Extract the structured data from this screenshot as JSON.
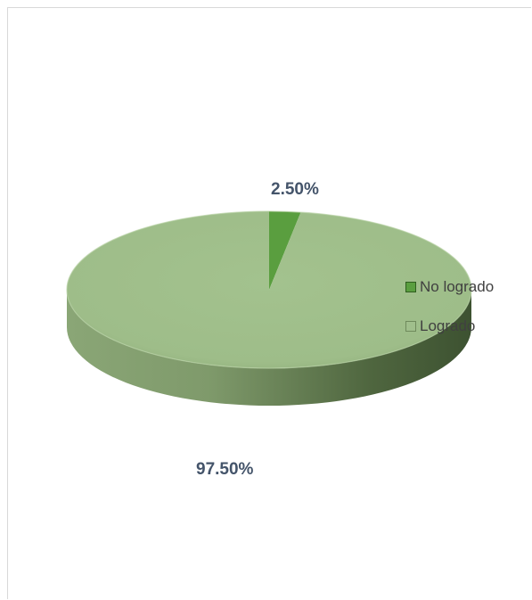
{
  "chart_data": {
    "type": "pie",
    "categories": [
      "No logrado",
      "Logrado"
    ],
    "values": [
      2.5,
      97.5
    ],
    "data_labels": [
      "2.50%",
      "97.50%"
    ],
    "colors": [
      "#5a9e3f",
      "#a0bf8c"
    ],
    "legend_position": "right",
    "three_d": true
  }
}
